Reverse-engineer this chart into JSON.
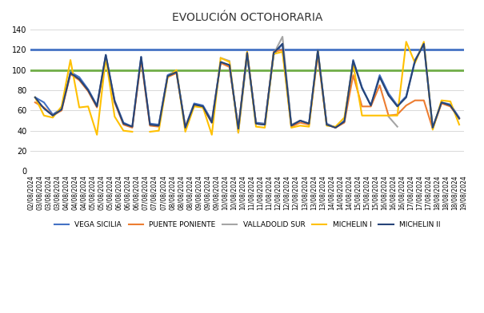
{
  "title": "EVOLUCIÓN OCTOHORARIA",
  "hline_blue": 120,
  "hline_green": 100,
  "ylim": [
    0,
    140
  ],
  "yticks": [
    0,
    20,
    40,
    60,
    80,
    100,
    120,
    140
  ],
  "series": {
    "VEGA SICILIA": {
      "color": "#4472C4",
      "linewidth": 1.5,
      "values": [
        73,
        68,
        56,
        62,
        98,
        93,
        81,
        65,
        115,
        70,
        48,
        44,
        113,
        47,
        46,
        95,
        99,
        44,
        67,
        65,
        50,
        108,
        104,
        42,
        115,
        48,
        47,
        115,
        126,
        45,
        50,
        47,
        120,
        47,
        43,
        50,
        110,
        83,
        65,
        95,
        77,
        65,
        74,
        110,
        125,
        43,
        68,
        66,
        53
      ]
    },
    "PUENTE PONIENTE": {
      "color": "#ED7D31",
      "linewidth": 1.5,
      "values": [
        68,
        63,
        55,
        60,
        96,
        90,
        79,
        63,
        113,
        68,
        46,
        43,
        110,
        45,
        44,
        93,
        97,
        43,
        65,
        63,
        48,
        107,
        103,
        42,
        118,
        47,
        46,
        118,
        120,
        44,
        48,
        46,
        115,
        46,
        43,
        48,
        95,
        64,
        64,
        85,
        55,
        56,
        65,
        70,
        70,
        42,
        67,
        64,
        52
      ]
    },
    "VALLADOLID SUR": {
      "color": "#A5A5A5",
      "linewidth": 1.5,
      "values": [
        null,
        null,
        null,
        null,
        null,
        null,
        null,
        null,
        null,
        null,
        null,
        null,
        null,
        null,
        null,
        null,
        null,
        null,
        null,
        null,
        null,
        112,
        109,
        38,
        114,
        47,
        46,
        116,
        133,
        46,
        50,
        47,
        null,
        null,
        null,
        null,
        null,
        null,
        null,
        null,
        54,
        44,
        null,
        null,
        51,
        null,
        null,
        null,
        null
      ]
    },
    "MICHELIN I": {
      "color": "#FFC000",
      "linewidth": 1.5,
      "values": [
        73,
        55,
        53,
        64,
        110,
        63,
        64,
        36,
        112,
        54,
        40,
        39,
        null,
        39,
        40,
        93,
        100,
        39,
        64,
        63,
        36,
        112,
        108,
        38,
        118,
        44,
        43,
        116,
        118,
        43,
        45,
        44,
        119,
        45,
        44,
        53,
        106,
        55,
        55,
        55,
        55,
        55,
        128,
        107,
        128,
        41,
        70,
        69,
        46
      ]
    },
    "MICHELIN II": {
      "color": "#264478",
      "linewidth": 1.5,
      "values": [
        73,
        62,
        55,
        61,
        97,
        91,
        80,
        64,
        115,
        69,
        47,
        44,
        113,
        46,
        45,
        94,
        98,
        43,
        66,
        64,
        48,
        108,
        105,
        42,
        117,
        47,
        46,
        117,
        126,
        45,
        50,
        47,
        119,
        46,
        43,
        49,
        109,
        82,
        65,
        93,
        75,
        64,
        73,
        109,
        126,
        43,
        68,
        65,
        52
      ]
    }
  },
  "dates_start": "2024-08-03",
  "n_points": 49,
  "freq_hours": 8,
  "background": "#FFFFFF",
  "grid_color": "#D9D9D9"
}
